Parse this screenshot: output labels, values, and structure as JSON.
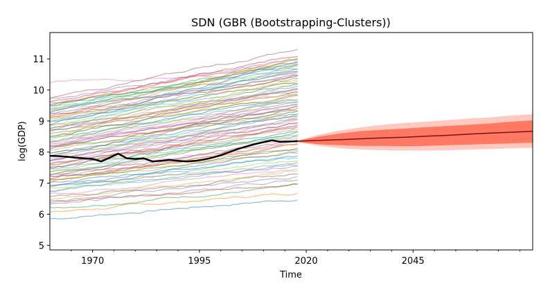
{
  "chart_data": {
    "type": "line",
    "title": "SDN (GBR (Bootstrapping-Clusters))",
    "xlabel": "Time",
    "ylabel": "log(GDP)",
    "xlim": [
      1960,
      2073
    ],
    "ylim": [
      4.85,
      11.85
    ],
    "x_ticks": [
      1970,
      1995,
      2020,
      2045
    ],
    "y_ticks": [
      5,
      6,
      7,
      8,
      9,
      10,
      11
    ],
    "grid": false,
    "legend": "none",
    "historical_years": [
      1960,
      2018
    ],
    "background_series": {
      "count": 90,
      "start_values": [
        5.85,
        6.05,
        6.2,
        6.35,
        6.45,
        6.55,
        6.65,
        6.75,
        6.85,
        6.95,
        7.0,
        7.05,
        7.1,
        7.15,
        7.2,
        7.25,
        7.3,
        7.35,
        7.4,
        7.45,
        7.5,
        7.55,
        7.6,
        7.65,
        7.7,
        7.75,
        7.8,
        7.85,
        7.9,
        7.95,
        8.0,
        8.05,
        8.1,
        8.15,
        8.2,
        8.25,
        8.3,
        8.35,
        8.4,
        8.45,
        8.5,
        8.55,
        8.6,
        8.65,
        8.7,
        8.75,
        8.8,
        8.85,
        8.9,
        8.95,
        9.0,
        9.05,
        9.1,
        9.15,
        9.2,
        9.25,
        9.3,
        9.35,
        9.4,
        9.45,
        9.5,
        9.55,
        9.6,
        9.65,
        9.7,
        9.75,
        10.25,
        6.3,
        6.5,
        6.7,
        6.9,
        7.1,
        7.3,
        7.5,
        7.7,
        7.9,
        8.1,
        8.3,
        8.5,
        8.7,
        8.9,
        9.1,
        9.3,
        9.5,
        6.9,
        7.2,
        7.6,
        8.2,
        8.8,
        9.4
      ],
      "end_values": [
        6.5,
        6.7,
        6.9,
        7.0,
        7.2,
        7.3,
        7.5,
        7.6,
        7.7,
        7.8,
        7.9,
        8.0,
        8.1,
        8.2,
        8.3,
        8.35,
        8.4,
        8.5,
        8.55,
        8.6,
        8.7,
        8.75,
        8.8,
        8.9,
        8.95,
        9.0,
        9.05,
        9.1,
        9.15,
        9.2,
        9.25,
        9.3,
        9.35,
        9.4,
        9.45,
        9.5,
        9.55,
        9.6,
        9.65,
        9.7,
        9.75,
        9.8,
        9.85,
        9.9,
        9.95,
        10.0,
        10.05,
        10.1,
        10.15,
        10.2,
        10.25,
        10.3,
        10.35,
        10.4,
        10.45,
        10.5,
        10.55,
        10.6,
        10.65,
        10.7,
        10.75,
        10.8,
        10.85,
        10.9,
        11.0,
        11.3,
        10.6,
        7.1,
        7.4,
        7.7,
        8.0,
        8.3,
        8.6,
        8.9,
        9.2,
        9.5,
        9.8,
        10.1,
        10.4,
        10.7,
        10.9,
        11.0,
        10.95,
        11.1,
        7.6,
        8.1,
        8.8,
        9.3,
        9.9,
        10.5
      ],
      "colors": [
        "#1f77b4",
        "#ff7f0e",
        "#2ca02c",
        "#d62728",
        "#9467bd",
        "#8c564b",
        "#e377c2",
        "#7f7f7f",
        "#bcbd22",
        "#17becf"
      ]
    },
    "highlight_series": {
      "name": "SDN",
      "color": "#000000",
      "x": [
        1960,
        1962,
        1964,
        1966,
        1968,
        1970,
        1972,
        1974,
        1976,
        1978,
        1980,
        1982,
        1984,
        1986,
        1988,
        1990,
        1992,
        1994,
        1996,
        1998,
        2000,
        2002,
        2004,
        2006,
        2008,
        2010,
        2012,
        2014,
        2016,
        2018
      ],
      "y": [
        7.88,
        7.87,
        7.85,
        7.82,
        7.8,
        7.78,
        7.7,
        7.82,
        7.95,
        7.8,
        7.78,
        7.8,
        7.7,
        7.72,
        7.75,
        7.72,
        7.7,
        7.72,
        7.76,
        7.82,
        7.9,
        8.0,
        8.1,
        8.18,
        8.26,
        8.32,
        8.38,
        8.33,
        8.34,
        8.35
      ]
    },
    "forecast": {
      "color": "#ff4d2e",
      "line_color": "#7a1010",
      "x": [
        2018,
        2023,
        2028,
        2033,
        2038,
        2043,
        2048,
        2053,
        2058,
        2063,
        2068,
        2073
      ],
      "median": [
        8.35,
        8.38,
        8.4,
        8.43,
        8.46,
        8.48,
        8.51,
        8.54,
        8.58,
        8.61,
        8.64,
        8.67
      ],
      "inner_lower": [
        8.33,
        8.25,
        8.22,
        8.2,
        8.2,
        8.19,
        8.2,
        8.22,
        8.24,
        8.26,
        8.28,
        8.3
      ],
      "inner_upper": [
        8.37,
        8.5,
        8.6,
        8.68,
        8.72,
        8.76,
        8.8,
        8.84,
        8.88,
        8.92,
        8.98,
        9.02
      ],
      "outer_lower": [
        8.32,
        8.2,
        8.12,
        8.08,
        8.06,
        8.05,
        8.05,
        8.06,
        8.08,
        8.1,
        8.12,
        8.14
      ],
      "outer_upper": [
        8.38,
        8.56,
        8.7,
        8.8,
        8.88,
        8.94,
        8.98,
        9.03,
        9.08,
        9.12,
        9.18,
        9.22
      ]
    }
  }
}
